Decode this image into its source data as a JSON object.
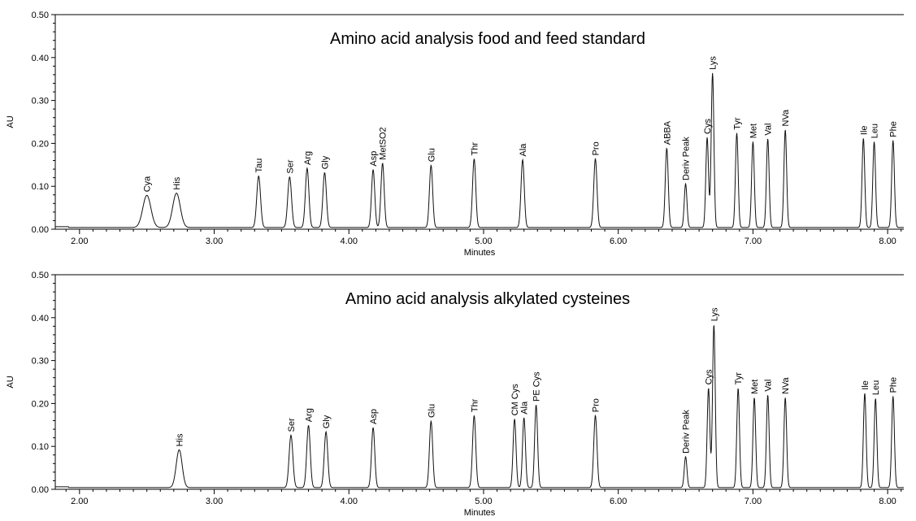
{
  "chart_data": [
    {
      "type": "line",
      "title": "Amino acid analysis food and feed standard",
      "xlabel": "Minutes",
      "ylabel": "AU",
      "xlim": [
        1.82,
        8.12
      ],
      "ylim": [
        0,
        0.5
      ],
      "x_ticks": [
        "2.00",
        "3.00",
        "4.00",
        "5.00",
        "6.00",
        "7.00",
        "8.00"
      ],
      "y_ticks": [
        "0.00",
        "0.10",
        "0.20",
        "0.30",
        "0.40",
        "0.50"
      ],
      "grid": false,
      "peaks": [
        {
          "label": "Cya",
          "x": 2.5,
          "y": 0.075,
          "w": 0.03
        },
        {
          "label": "His",
          "x": 2.72,
          "y": 0.08,
          "w": 0.028
        },
        {
          "label": "Tau",
          "x": 3.33,
          "y": 0.12,
          "w": 0.014
        },
        {
          "label": "Ser",
          "x": 3.56,
          "y": 0.118,
          "w": 0.014
        },
        {
          "label": "Arg",
          "x": 3.69,
          "y": 0.138,
          "w": 0.013
        },
        {
          "label": "Gly",
          "x": 3.82,
          "y": 0.128,
          "w": 0.013
        },
        {
          "label": "Asp",
          "x": 4.18,
          "y": 0.135,
          "w": 0.012
        },
        {
          "label": "MetSO2",
          "x": 4.25,
          "y": 0.15,
          "w": 0.012
        },
        {
          "label": "Glu",
          "x": 4.61,
          "y": 0.145,
          "w": 0.012
        },
        {
          "label": "Thr",
          "x": 4.93,
          "y": 0.16,
          "w": 0.012
        },
        {
          "label": "Ala",
          "x": 5.29,
          "y": 0.158,
          "w": 0.012
        },
        {
          "label": "Pro",
          "x": 5.83,
          "y": 0.16,
          "w": 0.012
        },
        {
          "label": "ABBA",
          "x": 6.36,
          "y": 0.185,
          "w": 0.011
        },
        {
          "label": "Deriv Peak",
          "x": 6.5,
          "y": 0.102,
          "w": 0.01
        },
        {
          "label": "Cys",
          "x": 6.66,
          "y": 0.21,
          "w": 0.01
        },
        {
          "label": "Lys",
          "x": 6.7,
          "y": 0.36,
          "w": 0.01
        },
        {
          "label": "Tyr",
          "x": 6.88,
          "y": 0.22,
          "w": 0.01
        },
        {
          "label": "Met",
          "x": 7.0,
          "y": 0.2,
          "w": 0.01
        },
        {
          "label": "Val",
          "x": 7.11,
          "y": 0.207,
          "w": 0.01
        },
        {
          "label": "NVa",
          "x": 7.24,
          "y": 0.228,
          "w": 0.01
        },
        {
          "label": "Ile",
          "x": 7.82,
          "y": 0.208,
          "w": 0.01
        },
        {
          "label": "Leu",
          "x": 7.9,
          "y": 0.2,
          "w": 0.01
        },
        {
          "label": "Phe",
          "x": 8.04,
          "y": 0.203,
          "w": 0.01
        }
      ]
    },
    {
      "type": "line",
      "title": "Amino acid analysis alkylated cysteines",
      "xlabel": "Minutes",
      "ylabel": "AU",
      "xlim": [
        1.82,
        8.12
      ],
      "ylim": [
        0,
        0.5
      ],
      "x_ticks": [
        "2.00",
        "3.00",
        "4.00",
        "5.00",
        "6.00",
        "7.00",
        "8.00"
      ],
      "y_ticks": [
        "0.00",
        "0.10",
        "0.20",
        "0.30",
        "0.40",
        "0.50"
      ],
      "grid": false,
      "peaks": [
        {
          "label": "His",
          "x": 2.74,
          "y": 0.088,
          "w": 0.022
        },
        {
          "label": "Ser",
          "x": 3.57,
          "y": 0.122,
          "w": 0.014
        },
        {
          "label": "Arg",
          "x": 3.7,
          "y": 0.145,
          "w": 0.013
        },
        {
          "label": "Gly",
          "x": 3.83,
          "y": 0.13,
          "w": 0.013
        },
        {
          "label": "Asp",
          "x": 4.18,
          "y": 0.14,
          "w": 0.012
        },
        {
          "label": "Glu",
          "x": 4.61,
          "y": 0.155,
          "w": 0.012
        },
        {
          "label": "Thr",
          "x": 4.93,
          "y": 0.168,
          "w": 0.012
        },
        {
          "label": "CM Cys",
          "x": 5.23,
          "y": 0.16,
          "w": 0.011
        },
        {
          "label": "Ala",
          "x": 5.3,
          "y": 0.163,
          "w": 0.011
        },
        {
          "label": "PE Cys",
          "x": 5.39,
          "y": 0.193,
          "w": 0.011
        },
        {
          "label": "Pro",
          "x": 5.83,
          "y": 0.168,
          "w": 0.012
        },
        {
          "label": "Deriv Peak",
          "x": 6.5,
          "y": 0.072,
          "w": 0.01
        },
        {
          "label": "Cys",
          "x": 6.67,
          "y": 0.232,
          "w": 0.01
        },
        {
          "label": "Lys",
          "x": 6.71,
          "y": 0.38,
          "w": 0.01
        },
        {
          "label": "Tyr",
          "x": 6.89,
          "y": 0.232,
          "w": 0.01
        },
        {
          "label": "Met",
          "x": 7.01,
          "y": 0.21,
          "w": 0.01
        },
        {
          "label": "Val",
          "x": 7.11,
          "y": 0.216,
          "w": 0.01
        },
        {
          "label": "NVa",
          "x": 7.24,
          "y": 0.21,
          "w": 0.01
        },
        {
          "label": "Ile",
          "x": 7.83,
          "y": 0.22,
          "w": 0.01
        },
        {
          "label": "Leu",
          "x": 7.91,
          "y": 0.208,
          "w": 0.01
        },
        {
          "label": "Phe",
          "x": 8.04,
          "y": 0.213,
          "w": 0.01
        }
      ]
    }
  ]
}
